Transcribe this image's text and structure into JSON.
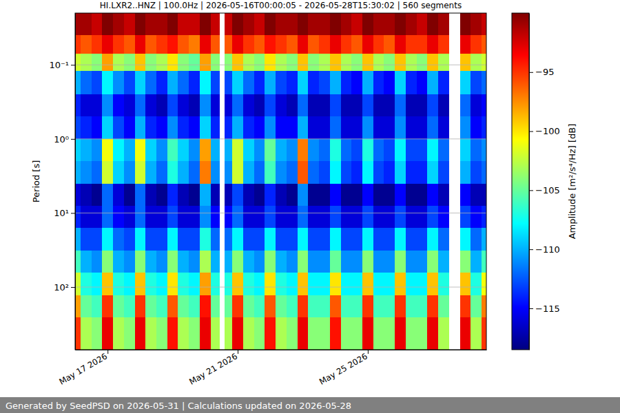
{
  "chart_data": {
    "type": "heatmap",
    "title": "HI.LXR2..HNZ | 100.0Hz | 2026-05-16T00:00:05 - 2026-05-28T15:30:02 | 560 segments",
    "y_label": "Period [s]",
    "footer": "Generated by SeedPSD on 2026-05-31 | Calculations updated on 2026-05-28",
    "log": "y",
    "grid": "y",
    "color": "jet",
    "xlim": [
      "2026-05-16T00:00:05",
      "2026-05-28T15:30:02"
    ],
    "xticks": [
      {
        "value": "2026-05-17T00:00:00",
        "label": "May 17 2026"
      },
      {
        "value": "2026-05-21T00:00:00",
        "label": "May 21 2026"
      },
      {
        "value": "2026-05-25T00:00:00",
        "label": "May 25 2026"
      }
    ],
    "ylim": [
      0.02,
      700
    ],
    "yticks": [
      {
        "value": 0.1,
        "label": "10⁻¹"
      },
      {
        "value": 1,
        "label": "10⁰"
      },
      {
        "value": 10,
        "label": "10¹"
      },
      {
        "value": 100,
        "label": "10²"
      }
    ],
    "colorbar": {
      "label": "Amplitude [m²/s⁴/Hz] [dB]",
      "lim": [
        -118.5,
        -90
      ],
      "ticks": [
        {
          "value": -115,
          "label": "−115"
        },
        {
          "value": -110,
          "label": "−110"
        },
        {
          "value": -105,
          "label": "−105"
        },
        {
          "value": -100,
          "label": "−100"
        },
        {
          "value": -95,
          "label": "−95"
        }
      ]
    },
    "x_bins": [
      "2026-05-16T00:00:05",
      "2026-05-16T04:00:00",
      "2026-05-16T12:00:00",
      "2026-05-16T20:00:00",
      "2026-05-17T04:00:00",
      "2026-05-17T12:00:00",
      "2026-05-17T20:00:00",
      "2026-05-18T04:00:00",
      "2026-05-18T12:00:00",
      "2026-05-18T20:00:00",
      "2026-05-19T04:00:00",
      "2026-05-19T12:00:00",
      "2026-05-19T20:00:00",
      "2026-05-20T04:00:00",
      "2026-05-20T10:40:00",
      "2026-05-20T14:10:00",
      "2026-05-20T20:00:00",
      "2026-05-21T04:00:00",
      "2026-05-21T12:00:00",
      "2026-05-21T20:00:00",
      "2026-05-22T04:00:00",
      "2026-05-22T12:00:00",
      "2026-05-22T20:00:00",
      "2026-05-23T04:00:00",
      "2026-05-23T12:00:00",
      "2026-05-23T20:00:00",
      "2026-05-24T04:00:00",
      "2026-05-24T12:00:00",
      "2026-05-24T20:00:00",
      "2026-05-25T04:00:00",
      "2026-05-25T12:00:00",
      "2026-05-25T20:00:00",
      "2026-05-26T04:00:00",
      "2026-05-26T12:00:00",
      "2026-05-26T20:00:00",
      "2026-05-27T04:00:00",
      "2026-05-27T12:00:00",
      "2026-05-27T20:00:00",
      "2026-05-28T04:00:00",
      "2026-05-28T12:00:00",
      "2026-05-28T15:30:02"
    ],
    "y_bins": [
      0.02,
      0.04,
      0.07,
      0.12,
      0.25,
      0.5,
      1,
      2,
      4,
      8,
      16,
      32,
      64,
      128,
      256,
      700
    ],
    "values": [
      [
        -91,
        -91,
        -92,
        -90,
        -91,
        -92,
        -90,
        -91,
        -91,
        -90,
        -92,
        -92,
        -90,
        -92,
        null,
        -92,
        -90,
        -91,
        -92,
        -90,
        -91,
        -91,
        -90,
        -91,
        -91,
        -90,
        -91,
        -92,
        -90,
        -91,
        -91,
        -90,
        -91,
        -92,
        -90,
        -91,
        null,
        -90,
        -91,
        -92
      ],
      [
        -95,
        -96,
        -95,
        -93,
        -95,
        -96,
        -93,
        -96,
        -95,
        -94,
        -96,
        -97,
        -93,
        -96,
        null,
        -96,
        -93,
        -95,
        -96,
        -94,
        -95,
        -96,
        -93,
        -96,
        -95,
        -93,
        -95,
        -96,
        -93,
        -95,
        -96,
        -93,
        -95,
        -95,
        -93,
        -95,
        null,
        -93,
        -95,
        -96
      ],
      [
        -102,
        -103,
        -104,
        -98,
        -103,
        -104,
        -99,
        -104,
        -103,
        -100,
        -104,
        -105,
        -98,
        -104,
        null,
        -104,
        -99,
        -103,
        -104,
        -100,
        -103,
        -104,
        -99,
        -104,
        -103,
        -99,
        -103,
        -104,
        -99,
        -103,
        -104,
        -99,
        -103,
        -104,
        -99,
        -103,
        null,
        -99,
        -103,
        -102
      ],
      [
        -110,
        -112,
        -113,
        -108,
        -111,
        -113,
        -109,
        -112,
        -114,
        -110,
        -112,
        -114,
        -108,
        -113,
        null,
        -113,
        -109,
        -112,
        -114,
        -110,
        -113,
        -114,
        -109,
        -114,
        -113,
        -110,
        -114,
        -115,
        -110,
        -114,
        -115,
        -109,
        -114,
        -115,
        -110,
        -114,
        null,
        -109,
        -113,
        -112
      ],
      [
        -114,
        -116,
        -116,
        -111,
        -115,
        -116,
        -112,
        -116,
        -117,
        -113,
        -116,
        -117,
        -111,
        -116,
        null,
        -116,
        -112,
        -116,
        -117,
        -113,
        -116,
        -117,
        -112,
        -117,
        -117,
        -113,
        -117,
        -117,
        -113,
        -117,
        -117,
        -112,
        -117,
        -117,
        -113,
        -117,
        null,
        -112,
        -116,
        -115
      ],
      [
        -113,
        -114,
        -115,
        -109,
        -113,
        -115,
        -110,
        -114,
        -115,
        -111,
        -114,
        -115,
        -109,
        -114,
        null,
        -114,
        -110,
        -114,
        -115,
        -111,
        -115,
        -115,
        -110,
        -116,
        -116,
        -112,
        -116,
        -116,
        -111,
        -116,
        -116,
        -111,
        -116,
        -116,
        -112,
        -116,
        null,
        -111,
        -115,
        -114
      ],
      [
        -109,
        -110,
        -111,
        -101,
        -108,
        -110,
        -101,
        -109,
        -111,
        -106,
        -109,
        -111,
        -98,
        -110,
        null,
        -110,
        -102,
        -109,
        -111,
        -105,
        -110,
        -111,
        -97,
        -111,
        -112,
        -107,
        -112,
        -113,
        -107,
        -112,
        -113,
        -108,
        -113,
        -113,
        -108,
        -112,
        null,
        -109,
        -112,
        -111
      ],
      [
        -110,
        -111,
        -112,
        -102,
        -109,
        -111,
        -102,
        -110,
        -112,
        -107,
        -110,
        -112,
        -97,
        -111,
        null,
        -111,
        -102,
        -110,
        -112,
        -106,
        -111,
        -112,
        -96,
        -112,
        -113,
        -108,
        -113,
        -114,
        -108,
        -113,
        -114,
        -109,
        -114,
        -114,
        -109,
        -113,
        null,
        -110,
        -113,
        -112
      ],
      [
        -116,
        -117,
        -118,
        -112,
        -116,
        -118,
        -112,
        -117,
        -118,
        -114,
        -117,
        -118,
        -110,
        -117,
        null,
        -117,
        -113,
        -117,
        -118,
        -114,
        -117,
        -118,
        -111,
        -118,
        -118,
        -115,
        -118,
        -118,
        -115,
        -118,
        -118,
        -115,
        -118,
        -118,
        -115,
        -117,
        null,
        -115,
        -117,
        -117
      ],
      [
        -114,
        -116,
        -116,
        -112,
        -115,
        -116,
        -112,
        -116,
        -116,
        -113,
        -116,
        -116,
        -111,
        -115,
        null,
        -115,
        -112,
        -116,
        -116,
        -113,
        -116,
        -116,
        -112,
        -116,
        -116,
        -113,
        -116,
        -116,
        -113,
        -116,
        -116,
        -113,
        -116,
        -116,
        -113,
        -115,
        null,
        -113,
        -115,
        -114
      ],
      [
        -110,
        -113,
        -113,
        -108,
        -112,
        -113,
        -108,
        -113,
        -113,
        -108,
        -113,
        -113,
        -107,
        -112,
        null,
        -112,
        -108,
        -113,
        -113,
        -108,
        -113,
        -113,
        -108,
        -113,
        -113,
        -108,
        -113,
        -113,
        -108,
        -113,
        -113,
        -108,
        -113,
        -113,
        -108,
        -112,
        null,
        -108,
        -112,
        -110
      ],
      [
        -106,
        -110,
        -111,
        -104,
        -110,
        -111,
        -104,
        -110,
        -111,
        -104,
        -110,
        -111,
        -103,
        -110,
        null,
        -110,
        -104,
        -110,
        -111,
        -104,
        -110,
        -111,
        -104,
        -111,
        -111,
        -105,
        -111,
        -111,
        -104,
        -111,
        -111,
        -104,
        -111,
        -111,
        -104,
        -110,
        null,
        -104,
        -110,
        -106
      ],
      [
        -102,
        -107,
        -108,
        -99,
        -107,
        -108,
        -99,
        -107,
        -108,
        -100,
        -107,
        -108,
        -98,
        -107,
        null,
        -107,
        -99,
        -107,
        -108,
        -100,
        -107,
        -108,
        -99,
        -108,
        -108,
        -100,
        -108,
        -108,
        -99,
        -108,
        -108,
        -99,
        -108,
        -108,
        -99,
        -107,
        null,
        -99,
        -107,
        -101
      ],
      [
        -98,
        -105,
        -106,
        -95,
        -105,
        -106,
        -95,
        -105,
        -106,
        -96,
        -105,
        -106,
        -94,
        -105,
        null,
        -105,
        -95,
        -105,
        -106,
        -96,
        -105,
        -106,
        -95,
        -106,
        -106,
        -96,
        -106,
        -106,
        -95,
        -106,
        -106,
        -95,
        -106,
        -106,
        -95,
        -105,
        null,
        -95,
        -105,
        -97
      ],
      [
        -95,
        -103,
        -104,
        -93,
        -103,
        -104,
        -93,
        -103,
        -104,
        -94,
        -103,
        -104,
        -93,
        -103,
        null,
        -103,
        -93,
        -103,
        -104,
        -94,
        -103,
        -104,
        -93,
        -104,
        -104,
        -94,
        -104,
        -104,
        -93,
        -104,
        -104,
        -93,
        -104,
        -104,
        -93,
        -103,
        null,
        -93,
        -103,
        -95
      ]
    ]
  }
}
